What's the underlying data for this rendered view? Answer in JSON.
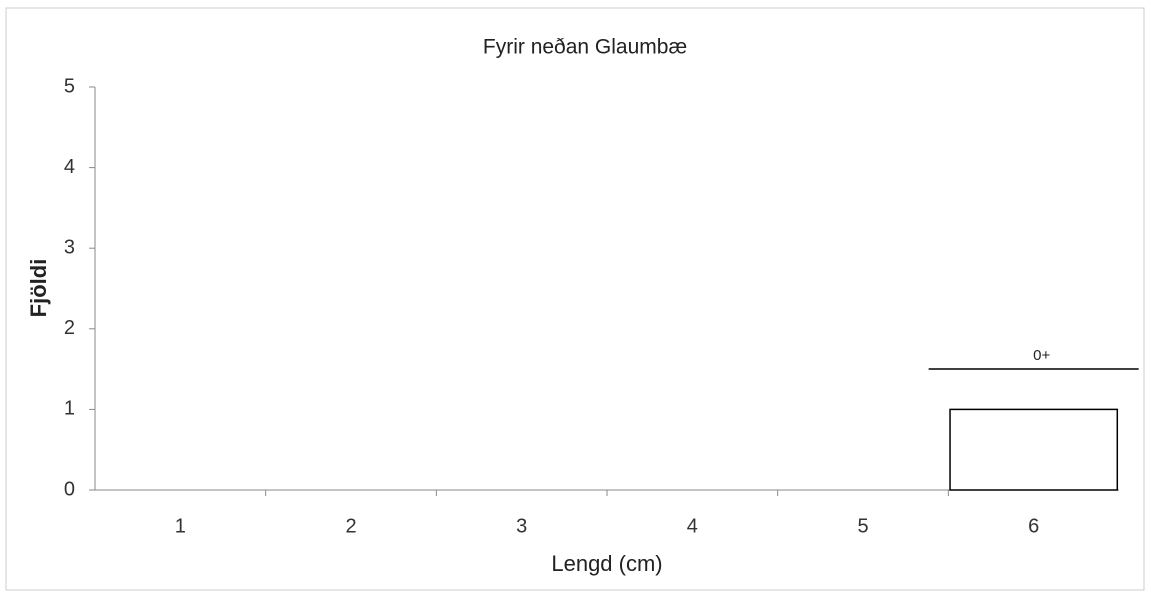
{
  "chart_data": {
    "type": "bar",
    "title": "Fyrir neðan Glaumbæ",
    "x_label": "Lengd (cm)",
    "y_label": "Fjöldi",
    "categories": [
      "1",
      "2",
      "3",
      "4",
      "5",
      "6"
    ],
    "values": [
      0,
      0,
      0,
      0,
      0,
      1
    ],
    "color": "#ffffff",
    "annotation": "0+",
    "ylim": [
      0,
      5
    ],
    "yticks": [
      0,
      1,
      2,
      3,
      4,
      5
    ],
    "grid": false
  }
}
